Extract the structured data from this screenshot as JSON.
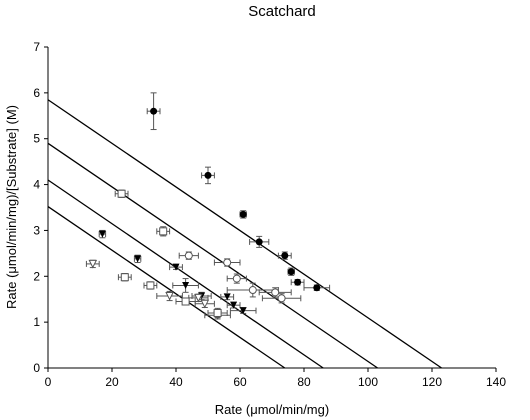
{
  "chart_data": {
    "type": "scatter",
    "title": "Scatchard",
    "xlabel": "Rate (μmol/min/mg)",
    "ylabel": "Rate (μmol/min/mg)/[Substrate] (M)",
    "xlim": [
      0,
      140
    ],
    "ylim": [
      0,
      7
    ],
    "xticks": [
      "0",
      "20",
      "40",
      "60",
      "80",
      "100",
      "120",
      "140"
    ],
    "yticks": [
      "0",
      "1",
      "2",
      "3",
      "4",
      "5",
      "6",
      "7"
    ],
    "grid": false,
    "legend": "none",
    "series": [
      {
        "marker": "filled-circle",
        "points": [
          {
            "x": 33,
            "y": 5.6,
            "xerr": 2,
            "yerr": 0.4
          },
          {
            "x": 50,
            "y": 4.2,
            "xerr": 2,
            "yerr": 0.18
          },
          {
            "x": 61,
            "y": 3.35,
            "xerr": 1,
            "yerr": 0.08
          },
          {
            "x": 66,
            "y": 2.75,
            "xerr": 3,
            "yerr": 0.12
          },
          {
            "x": 74,
            "y": 2.45,
            "xerr": 2,
            "yerr": 0.08
          },
          {
            "x": 76,
            "y": 2.1,
            "xerr": 1,
            "yerr": 0.08
          },
          {
            "x": 78,
            "y": 1.87,
            "xerr": 2,
            "yerr": 0.06
          },
          {
            "x": 84,
            "y": 1.75,
            "xerr": 4,
            "yerr": 0.06
          }
        ]
      },
      {
        "marker": "filled-triangle-down",
        "points": [
          {
            "x": 17,
            "y": 2.92,
            "xerr": 1,
            "yerr": 0.08
          },
          {
            "x": 28,
            "y": 2.38,
            "xerr": 1,
            "yerr": 0.08
          },
          {
            "x": 40,
            "y": 2.2,
            "xerr": 2,
            "yerr": 0.05
          },
          {
            "x": 43,
            "y": 1.8,
            "xerr": 4,
            "yerr": 0.15
          },
          {
            "x": 48,
            "y": 1.57,
            "xerr": 3,
            "yerr": 0.08
          },
          {
            "x": 56,
            "y": 1.55,
            "xerr": 2,
            "yerr": 0.06
          },
          {
            "x": 58,
            "y": 1.37,
            "xerr": 2,
            "yerr": 0.06
          },
          {
            "x": 61,
            "y": 1.25,
            "xerr": 4,
            "yerr": 0.06
          }
        ]
      },
      {
        "marker": "open-triangle-down",
        "points": [
          {
            "x": 14,
            "y": 2.27,
            "xerr": 2,
            "yerr": 0.08
          },
          {
            "x": 38,
            "y": 1.57,
            "xerr": 4,
            "yerr": 0.1
          },
          {
            "x": 47,
            "y": 1.53,
            "xerr": 3,
            "yerr": 0.08
          },
          {
            "x": 49,
            "y": 1.4,
            "xerr": 3,
            "yerr": 0.08
          },
          {
            "x": 53,
            "y": 1.15,
            "xerr": 4,
            "yerr": 0.08
          }
        ]
      },
      {
        "marker": "open-square",
        "points": [
          {
            "x": 23,
            "y": 3.8,
            "xerr": 2,
            "yerr": 0.08
          },
          {
            "x": 36,
            "y": 2.98,
            "xerr": 2,
            "yerr": 0.1
          },
          {
            "x": 24,
            "y": 1.98,
            "xerr": 2,
            "yerr": 0.08
          },
          {
            "x": 32,
            "y": 1.8,
            "xerr": 2,
            "yerr": 0.08
          },
          {
            "x": 43,
            "y": 1.45,
            "xerr": 3,
            "yerr": 0.06
          },
          {
            "x": 53,
            "y": 1.2,
            "xerr": 3,
            "yerr": 0.1
          }
        ]
      },
      {
        "marker": "open-circle",
        "points": [
          {
            "x": 44,
            "y": 2.45,
            "xerr": 3,
            "yerr": 0.08
          },
          {
            "x": 56,
            "y": 2.3,
            "xerr": 4,
            "yerr": 0.08
          },
          {
            "x": 59,
            "y": 1.95,
            "xerr": 3,
            "yerr": 0.1
          },
          {
            "x": 64,
            "y": 1.7,
            "xerr": 8,
            "yerr": 0.15
          },
          {
            "x": 71,
            "y": 1.65,
            "xerr": 5,
            "yerr": 0.1
          },
          {
            "x": 73,
            "y": 1.52,
            "xerr": 6,
            "yerr": 0.1
          }
        ]
      }
    ],
    "lines": [
      {
        "x0": 0,
        "y0": 5.85,
        "x1": 123,
        "y1": 0
      },
      {
        "x0": 0,
        "y0": 4.9,
        "x1": 103,
        "y1": 0
      },
      {
        "x0": 0,
        "y0": 4.1,
        "x1": 86,
        "y1": 0
      },
      {
        "x0": 0,
        "y0": 3.52,
        "x1": 74,
        "y1": 0
      }
    ]
  }
}
